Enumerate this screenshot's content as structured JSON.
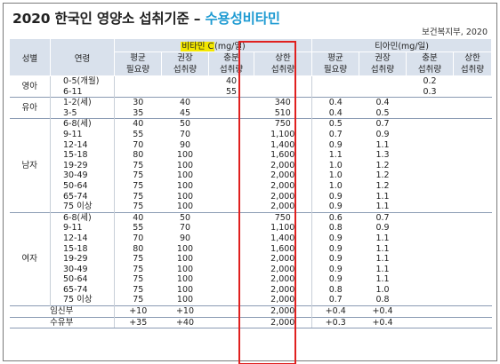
{
  "title_main": "2020 한국인 영양소 섭취기준 –",
  "title_highlight": "수용성비타민",
  "source": "보건복지부, 2020",
  "header": {
    "sex": "성별",
    "age": "연령",
    "vitc_name": "비타민 C",
    "vitc_unit": "(mg/일)",
    "thiamin": "티아민(mg/일)",
    "sub": [
      "평균\n필요량",
      "권장\n섭취량",
      "충분\n섭취량",
      "상한\n섭취량",
      "평균\n필요량",
      "권장\n섭취량",
      "충분\n섭취량",
      "상한\n섭취량"
    ]
  },
  "groups": [
    {
      "sex": "영아",
      "rows": [
        {
          "age": "0-5(개월)",
          "v": [
            "",
            "",
            "40",
            "",
            "",
            "",
            "0.2",
            ""
          ]
        },
        {
          "age": "6-11",
          "v": [
            "",
            "",
            "55",
            "",
            "",
            "",
            "0.3",
            ""
          ]
        }
      ]
    },
    {
      "sex": "유아",
      "rows": [
        {
          "age": "1-2(세)",
          "v": [
            "30",
            "40",
            "",
            "340",
            "0.4",
            "0.4",
            "",
            ""
          ]
        },
        {
          "age": "3-5",
          "v": [
            "35",
            "45",
            "",
            "510",
            "0.4",
            "0.5",
            "",
            ""
          ]
        }
      ]
    },
    {
      "sex": "남자",
      "rows": [
        {
          "age": "6-8(세)",
          "v": [
            "40",
            "50",
            "",
            "750",
            "0.5",
            "0.7",
            "",
            ""
          ]
        },
        {
          "age": "9-11",
          "v": [
            "55",
            "70",
            "",
            "1,100",
            "0.7",
            "0.9",
            "",
            ""
          ]
        },
        {
          "age": "12-14",
          "v": [
            "70",
            "90",
            "",
            "1,400",
            "0.9",
            "1.1",
            "",
            ""
          ]
        },
        {
          "age": "15-18",
          "v": [
            "80",
            "100",
            "",
            "1,600",
            "1.1",
            "1.3",
            "",
            ""
          ]
        },
        {
          "age": "19-29",
          "v": [
            "75",
            "100",
            "",
            "2,000",
            "1.0",
            "1.2",
            "",
            ""
          ]
        },
        {
          "age": "30-49",
          "v": [
            "75",
            "100",
            "",
            "2,000",
            "1.0",
            "1.2",
            "",
            ""
          ]
        },
        {
          "age": "50-64",
          "v": [
            "75",
            "100",
            "",
            "2,000",
            "1.0",
            "1.2",
            "",
            ""
          ]
        },
        {
          "age": "65-74",
          "v": [
            "75",
            "100",
            "",
            "2,000",
            "0.9",
            "1.1",
            "",
            ""
          ]
        },
        {
          "age": "75 이상",
          "v": [
            "75",
            "100",
            "",
            "2,000",
            "0.9",
            "1.1",
            "",
            ""
          ]
        }
      ]
    },
    {
      "sex": "여자",
      "rows": [
        {
          "age": "6-8(세)",
          "v": [
            "40",
            "50",
            "",
            "750",
            "0.6",
            "0.7",
            "",
            ""
          ]
        },
        {
          "age": "9-11",
          "v": [
            "55",
            "70",
            "",
            "1,100",
            "0.8",
            "0.9",
            "",
            ""
          ]
        },
        {
          "age": "12-14",
          "v": [
            "70",
            "90",
            "",
            "1,400",
            "0.9",
            "1.1",
            "",
            ""
          ]
        },
        {
          "age": "15-18",
          "v": [
            "80",
            "100",
            "",
            "1,600",
            "0.9",
            "1.1",
            "",
            ""
          ]
        },
        {
          "age": "19-29",
          "v": [
            "75",
            "100",
            "",
            "2,000",
            "0.9",
            "1.1",
            "",
            ""
          ]
        },
        {
          "age": "30-49",
          "v": [
            "75",
            "100",
            "",
            "2,000",
            "0.9",
            "1.1",
            "",
            ""
          ]
        },
        {
          "age": "50-64",
          "v": [
            "75",
            "100",
            "",
            "2,000",
            "0.9",
            "1.1",
            "",
            ""
          ]
        },
        {
          "age": "65-74",
          "v": [
            "75",
            "100",
            "",
            "2,000",
            "0.8",
            "1.0",
            "",
            ""
          ]
        },
        {
          "age": "75 이상",
          "v": [
            "75",
            "100",
            "",
            "2,000",
            "0.7",
            "0.8",
            "",
            ""
          ]
        }
      ]
    },
    {
      "sex": "임신부",
      "merged": true,
      "rows": [
        {
          "age": "",
          "v": [
            "+10",
            "+10",
            "",
            "2,000",
            "+0.4",
            "+0.4",
            "",
            ""
          ]
        }
      ]
    },
    {
      "sex": "수유부",
      "merged": true,
      "rows": [
        {
          "age": "",
          "v": [
            "+35",
            "+40",
            "",
            "2,000",
            "+0.3",
            "+0.4",
            "",
            ""
          ]
        }
      ]
    }
  ],
  "highlight_color": "#e0201f"
}
